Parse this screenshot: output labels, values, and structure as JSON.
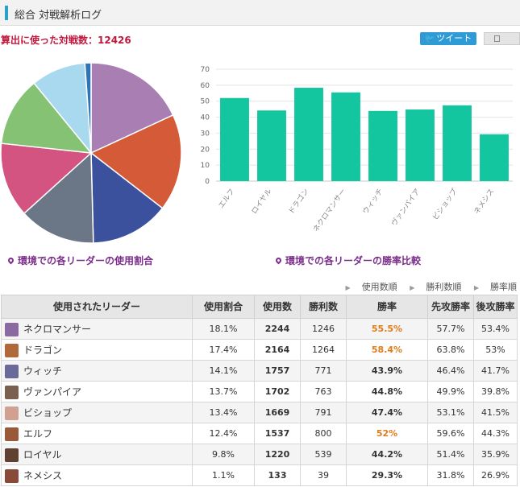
{
  "header": {
    "title": "総合 対戦解析ログ"
  },
  "summary": {
    "count_text": "算出に使った対戦数：12426"
  },
  "share": {
    "tweet_label": "ツイート"
  },
  "captions": {
    "pie": "環境での各リーダーの使用割合",
    "bar": "環境での各リーダーの勝率比較"
  },
  "sort_buttons": [
    "使用数順",
    "勝利数順",
    "勝率順"
  ],
  "table": {
    "headers": [
      "使用されたリーダー",
      "使用割合",
      "使用数",
      "勝利数",
      "勝率",
      "先攻勝率",
      "後攻勝率"
    ],
    "rows": [
      {
        "name": "ネクロマンサー",
        "share": "18.1%",
        "used": "2244",
        "wins": "1246",
        "rate": "55.5%",
        "first": "57.7%",
        "second": "53.4%",
        "hi": true,
        "color": "#8a6aa0"
      },
      {
        "name": "ドラゴン",
        "share": "17.4%",
        "used": "2164",
        "wins": "1264",
        "rate": "58.4%",
        "first": "63.8%",
        "second": "53%",
        "hi": true,
        "color": "#b06a3a"
      },
      {
        "name": "ウィッチ",
        "share": "14.1%",
        "used": "1757",
        "wins": "771",
        "rate": "43.9%",
        "first": "46.4%",
        "second": "41.7%",
        "hi": false,
        "color": "#6a6a9a"
      },
      {
        "name": "ヴァンパイア",
        "share": "13.7%",
        "used": "1702",
        "wins": "763",
        "rate": "44.8%",
        "first": "49.9%",
        "second": "39.8%",
        "hi": false,
        "color": "#7a6050"
      },
      {
        "name": "ビショップ",
        "share": "13.4%",
        "used": "1669",
        "wins": "791",
        "rate": "47.4%",
        "first": "53.1%",
        "second": "41.5%",
        "hi": false,
        "color": "#d0a090"
      },
      {
        "name": "エルフ",
        "share": "12.4%",
        "used": "1537",
        "wins": "800",
        "rate": "52%",
        "first": "59.6%",
        "second": "44.3%",
        "hi": true,
        "color": "#9a5a3a"
      },
      {
        "name": "ロイヤル",
        "share": "9.8%",
        "used": "1220",
        "wins": "539",
        "rate": "44.2%",
        "first": "51.4%",
        "second": "35.9%",
        "hi": false,
        "color": "#604030"
      },
      {
        "name": "ネメシス",
        "share": "1.1%",
        "used": "133",
        "wins": "39",
        "rate": "29.3%",
        "first": "31.8%",
        "second": "26.9%",
        "hi": false,
        "color": "#8a4a3a"
      }
    ]
  },
  "chart_data": [
    {
      "type": "pie",
      "categories": [
        "ネクロマンサー",
        "ドラゴン",
        "ウィッチ",
        "ヴァンパイア",
        "ビショップ",
        "エルフ",
        "ロイヤル",
        "ネメシス"
      ],
      "values": [
        18.1,
        17.4,
        14.1,
        13.7,
        13.4,
        12.4,
        9.8,
        1.1
      ],
      "colors": [
        "#a97eb2",
        "#d45a38",
        "#3c519e",
        "#6b7687",
        "#d45481",
        "#86c273",
        "#a9d9ef",
        "#2f74b5"
      ]
    },
    {
      "type": "bar",
      "categories": [
        "エルフ",
        "ロイヤル",
        "ドラゴン",
        "ネクロマンサー",
        "ウィッチ",
        "ヴァンパイア",
        "ビショップ",
        "ネメシス"
      ],
      "values": [
        52,
        44.2,
        58.4,
        55.5,
        43.9,
        44.8,
        47.4,
        29.3
      ],
      "ylim": [
        0,
        70
      ],
      "yticks": [
        0,
        10,
        20,
        30,
        40,
        50,
        60,
        70
      ],
      "color": "#13c6a0",
      "grid": true
    }
  ]
}
